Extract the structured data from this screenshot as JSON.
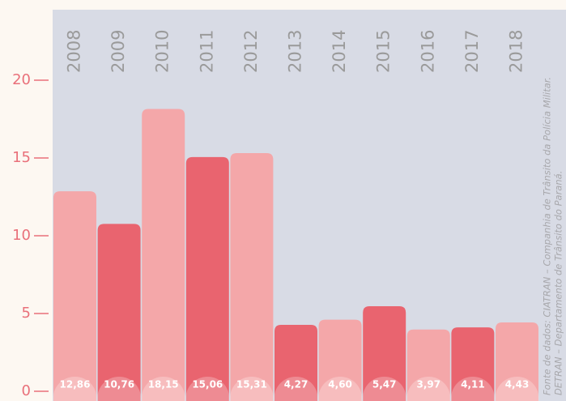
{
  "chart_data": {
    "type": "bar",
    "categories": [
      "2008",
      "2009",
      "2010",
      "2011",
      "2012",
      "2013",
      "2014",
      "2015",
      "2016",
      "2017",
      "2018"
    ],
    "values": [
      12.86,
      10.76,
      18.15,
      15.06,
      15.31,
      4.27,
      4.6,
      5.47,
      3.97,
      4.11,
      4.43
    ],
    "value_labels": [
      "12,86",
      "10,76",
      "18,15",
      "15,06",
      "15,31",
      "4,27",
      "4,60",
      "5,47",
      "3,97",
      "4,11",
      "4,43"
    ],
    "colors": [
      "#f4a7a9",
      "#e9646f",
      "#f4a7a9",
      "#e9646f",
      "#f4a7a9",
      "#e9646f",
      "#f4a7a9",
      "#e9646f",
      "#f4a7a9",
      "#e9646f",
      "#f4a7a9"
    ],
    "ylim": [
      0,
      20
    ],
    "yticks": [
      0,
      5,
      10,
      15,
      20
    ],
    "source": [
      "Fonte de dados: CIATRAN – Companhia de Trânsito da Polícia Militar.",
      "DETRAN – Departamento de Trânsito do Paraná."
    ]
  }
}
